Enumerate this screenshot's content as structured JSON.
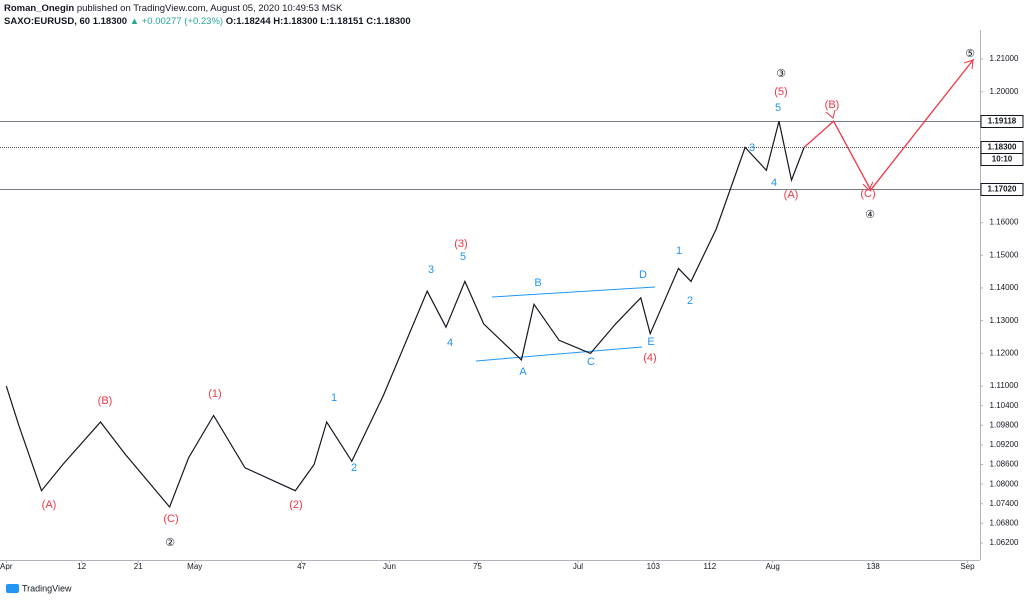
{
  "header": {
    "line1_author": "Roman_Onegin",
    "line1_rest": "published on TradingView.com, August 05, 2020 10:49:53 MSK",
    "symbol": "SAXO:EURUSD, 60",
    "last": "1.18300",
    "change": "+0.00277 (+0.23%)",
    "open": "O:1.18244",
    "high": "H:1.18300",
    "low": "L:1.18151",
    "close": "C:1.18300"
  },
  "footer": "TradingView",
  "chart_data": {
    "type": "line",
    "xlim": [
      -1,
      155
    ],
    "ylim": [
      1.0568,
      1.2189
    ],
    "xticks": [
      {
        "value": 0,
        "label": "Apr"
      },
      12,
      21,
      {
        "value": 30,
        "label": "May"
      },
      47,
      {
        "value": 61,
        "label": "Jun"
      },
      75,
      {
        "value": 91,
        "label": "Jul"
      },
      103,
      112,
      {
        "value": 122,
        "label": "Aug"
      },
      138,
      {
        "value": 153,
        "label": "Sep"
      }
    ],
    "yticks": [
      {
        "value": 1.062,
        "label": "1.06200"
      },
      {
        "value": 1.068,
        "label": "1.06800"
      },
      {
        "value": 1.074,
        "label": "1.07400"
      },
      {
        "value": 1.08,
        "label": "1.08000"
      },
      {
        "value": 1.086,
        "label": "1.08600"
      },
      {
        "value": 1.092,
        "label": "1.09200"
      },
      {
        "value": 1.098,
        "label": "1.09800"
      },
      {
        "value": 1.104,
        "label": "1.10400"
      },
      {
        "value": 1.11,
        "label": "1.11000"
      },
      {
        "value": 1.12,
        "label": "1.12000"
      },
      {
        "value": 1.13,
        "label": "1.13000"
      },
      {
        "value": 1.14,
        "label": "1.14000"
      },
      {
        "value": 1.15,
        "label": "1.15000"
      },
      {
        "value": 1.16,
        "label": "1.16000"
      },
      {
        "value": 1.2,
        "label": "1.20000"
      },
      {
        "value": 1.21,
        "label": "1.21000"
      }
    ],
    "hlines": [
      {
        "value": 1.19118,
        "label": "1.19118"
      },
      {
        "value": 1.183,
        "label": "1.18300"
      },
      {
        "value": 1.1702,
        "label": "1.17020"
      }
    ],
    "countdown": "10:10",
    "series": [
      {
        "color": "#131722",
        "x": [
          0,
          2,
          5.6,
          9,
          15,
          19,
          26,
          29,
          33,
          38,
          46,
          49,
          51,
          55,
          60,
          67,
          70,
          73,
          76,
          82,
          84,
          88,
          93,
          97,
          101,
          102.5,
          107,
          109,
          113,
          117.6,
          121,
          123,
          125,
          127
        ],
        "values": [
          1.11,
          1.098,
          1.078,
          1.086,
          1.099,
          1.089,
          1.073,
          1.088,
          1.101,
          1.085,
          1.078,
          1.086,
          1.099,
          1.087,
          1.107,
          1.139,
          1.128,
          1.142,
          1.129,
          1.118,
          1.135,
          1.124,
          1.12,
          1.129,
          1.137,
          1.126,
          1.146,
          1.142,
          1.158,
          1.183,
          1.176,
          1.191,
          1.173,
          1.183
        ]
      },
      {
        "color": "#f23645",
        "x": [
          127,
          131.7,
          137.6,
          154
        ],
        "values": [
          1.183,
          1.191,
          1.17,
          1.21
        ]
      }
    ],
    "annotations": [
      {
        "text": "③",
        "color": "#131722"
      },
      {
        "text": "(5)",
        "color": "#f23645"
      },
      {
        "text": "5",
        "color": "#2196f3"
      },
      {
        "text": "(B)",
        "color": "#f23645"
      },
      {
        "text": "3",
        "color": "#2196f3"
      },
      {
        "text": "4",
        "color": "#2196f3"
      },
      {
        "text": "(A)",
        "color": "#f23645"
      },
      {
        "text": "(C)",
        "color": "#f23645"
      },
      {
        "text": "④",
        "color": "#131722"
      },
      {
        "text": "⑤",
        "color": "#131722"
      },
      {
        "text": "(3)",
        "color": "#f23645"
      },
      {
        "text": "3",
        "color": "#2196f3"
      },
      {
        "text": "5",
        "color": "#2196f3"
      },
      {
        "text": "B",
        "color": "#2196f3"
      },
      {
        "text": "D",
        "color": "#2196f3"
      },
      {
        "text": "1",
        "color": "#2196f3"
      },
      {
        "text": "2",
        "color": "#2196f3"
      },
      {
        "text": "4",
        "color": "#2196f3"
      },
      {
        "text": "E",
        "color": "#2196f3"
      },
      {
        "text": "(4)",
        "color": "#f23645"
      },
      {
        "text": "A",
        "color": "#2196f3"
      },
      {
        "text": "C",
        "color": "#2196f3"
      },
      {
        "text": "1",
        "color": "#2196f3"
      },
      {
        "text": "2",
        "color": "#2196f3"
      },
      {
        "text": "(B)",
        "color": "#f23645"
      },
      {
        "text": "(1)",
        "color": "#f23645"
      },
      {
        "text": "(A)",
        "color": "#f23645"
      },
      {
        "text": "(C)",
        "color": "#f23645"
      },
      {
        "text": "(2)",
        "color": "#f23645"
      },
      {
        "text": "②",
        "color": "#131722"
      }
    ]
  }
}
